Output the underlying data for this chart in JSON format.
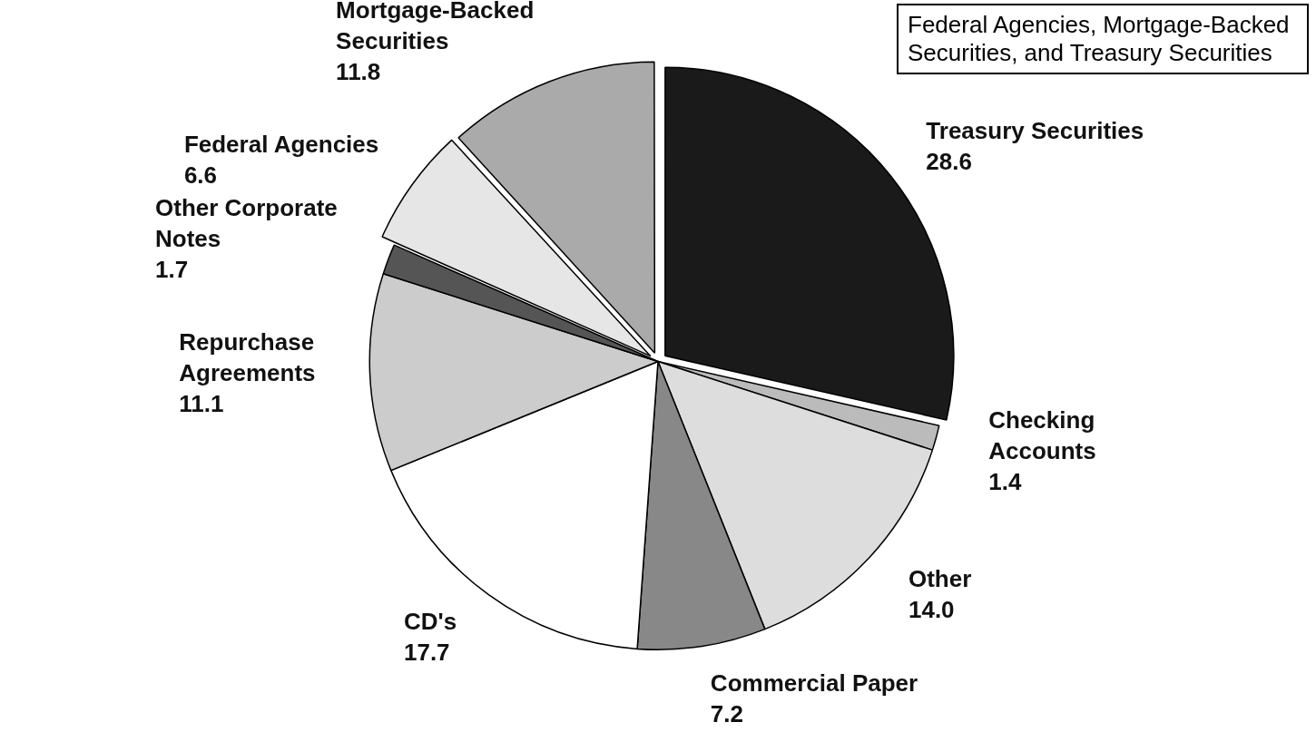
{
  "chart_data": {
    "type": "pie",
    "categories": [
      "Treasury Securities",
      "Checking Accounts",
      "Other",
      "Commercial Paper",
      "CD's",
      "Repurchase Agreements",
      "Other Corporate Notes",
      "Federal Agencies",
      "Mortgage-Backed Securities"
    ],
    "values": [
      28.6,
      1.4,
      14.0,
      7.2,
      17.7,
      11.1,
      1.7,
      6.6,
      11.8
    ],
    "value_labels": [
      "28.6",
      "1.4",
      "14.0",
      "7.2",
      "17.7",
      "11.1",
      "1.7",
      "6.6",
      "11.8"
    ],
    "colors": [
      "#1a1a1a",
      "#bbbbbb",
      "#dddddd",
      "#888888",
      "#ffffff",
      "#cccccc",
      "#555555",
      "#e6e6e6",
      "#aaaaaa"
    ],
    "annotations": [
      "Federal Agencies, Mortgage-Backed Securities, and Treasury Securities"
    ],
    "legend": false
  }
}
